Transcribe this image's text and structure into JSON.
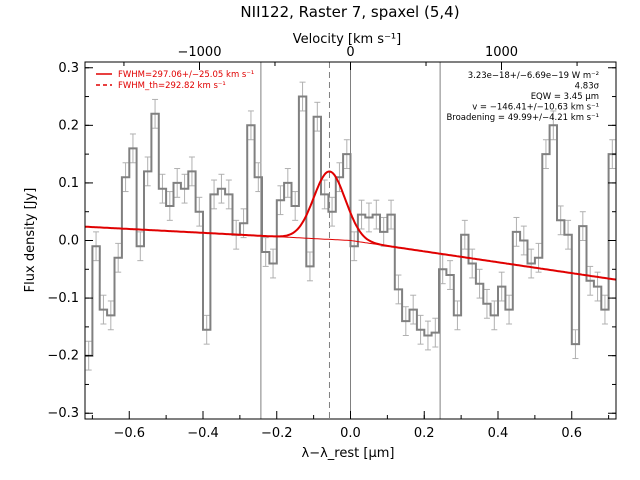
{
  "chart_data": {
    "type": "line",
    "title": "NII122, Raster 7, spaxel (5,4)",
    "xlabel": "λ−λ_rest [μm]",
    "ylabel": "Flux density [Jy]",
    "top_axis_label": "Velocity [km s⁻¹]",
    "xlim": [
      -0.72,
      0.72
    ],
    "ylim": [
      -0.31,
      0.31
    ],
    "top_axis_ticks": [
      {
        "label": "−1000",
        "value": -0.4095
      },
      {
        "label": "0",
        "value": 0.0
      },
      {
        "label": "1000",
        "value": 0.4095
      }
    ],
    "x_ticks": [
      {
        "label": "−0.6",
        "value": -0.6
      },
      {
        "label": "−0.4",
        "value": -0.4
      },
      {
        "label": "−0.2",
        "value": -0.2
      },
      {
        "label": "0.0",
        "value": 0.0
      },
      {
        "label": "0.2",
        "value": 0.2
      },
      {
        "label": "0.4",
        "value": 0.4
      },
      {
        "label": "0.6",
        "value": 0.6
      }
    ],
    "y_ticks": [
      {
        "label": "−0.3",
        "value": -0.3
      },
      {
        "label": "−0.2",
        "value": -0.2
      },
      {
        "label": "−0.1",
        "value": -0.1
      },
      {
        "label": "0.0",
        "value": 0.0
      },
      {
        "label": "0.1",
        "value": 0.1
      },
      {
        "label": "0.2",
        "value": 0.2
      },
      {
        "label": "0.3",
        "value": 0.3
      }
    ],
    "vertical_lines": [
      -0.243,
      0.0,
      0.243
    ],
    "dashed_vertical_line": -0.057,
    "series": [
      {
        "name": "spectrum",
        "color": "#808080",
        "x": [
          -0.71,
          -0.69,
          -0.67,
          -0.65,
          -0.63,
          -0.61,
          -0.59,
          -0.57,
          -0.55,
          -0.53,
          -0.51,
          -0.49,
          -0.47,
          -0.45,
          -0.43,
          -0.41,
          -0.39,
          -0.37,
          -0.35,
          -0.33,
          -0.31,
          -0.29,
          -0.27,
          -0.25,
          -0.23,
          -0.21,
          -0.19,
          -0.17,
          -0.15,
          -0.13,
          -0.11,
          -0.09,
          -0.07,
          -0.05,
          -0.03,
          -0.01,
          0.01,
          0.03,
          0.05,
          0.07,
          0.09,
          0.11,
          0.13,
          0.15,
          0.17,
          0.19,
          0.21,
          0.23,
          0.25,
          0.27,
          0.29,
          0.31,
          0.33,
          0.35,
          0.37,
          0.39,
          0.41,
          0.43,
          0.45,
          0.47,
          0.49,
          0.51,
          0.53,
          0.55,
          0.57,
          0.59,
          0.61,
          0.63,
          0.65,
          0.67,
          0.69,
          0.71
        ],
        "y": [
          -0.2,
          -0.01,
          -0.12,
          -0.13,
          -0.03,
          0.11,
          0.16,
          -0.01,
          0.12,
          0.22,
          0.09,
          0.06,
          0.1,
          0.09,
          0.12,
          0.05,
          -0.155,
          0.08,
          0.09,
          0.08,
          0.01,
          0.03,
          0.2,
          0.11,
          -0.02,
          -0.04,
          0.07,
          0.1,
          0.06,
          0.25,
          -0.045,
          0.215,
          0.08,
          0.05,
          0.11,
          0.15,
          -0.01,
          0.045,
          0.04,
          0.045,
          0.015,
          0.045,
          -0.085,
          -0.14,
          -0.12,
          -0.155,
          -0.165,
          -0.16,
          -0.05,
          -0.06,
          -0.13,
          0.01,
          -0.04,
          -0.075,
          -0.11,
          -0.13,
          -0.08,
          -0.12,
          0.015,
          0.0,
          -0.04,
          -0.03,
          0.15,
          0.2,
          0.035,
          0.01,
          -0.18,
          0.025,
          -0.07,
          -0.08,
          -0.12,
          0.15
        ],
        "error": 0.025
      },
      {
        "name": "continuum",
        "color": "#e00000",
        "x": [
          -0.72,
          0.0,
          0.72
        ],
        "y": [
          0.024,
          0.0,
          -0.068
        ]
      },
      {
        "name": "line fit (Gaussian)",
        "color": "#e00000",
        "center": -0.057,
        "amplitude": 0.118,
        "sigma": 0.0425
      }
    ],
    "legend": {
      "position": "top-left",
      "items": [
        {
          "label": "FWHM=297.06+/−25.05 km s⁻¹",
          "style": "solid",
          "color": "#e00000"
        },
        {
          "label": "FWHM_th=292.82 km s⁻¹",
          "style": "dashed",
          "color": "#e00000"
        }
      ]
    },
    "annotations": {
      "position": "top-right",
      "lines": [
        "3.23e−18+/−6.69e−19 W m⁻²",
        "4.83σ",
        "EQW = 3.45 μm",
        "v = −146.41+/−10.63 km s⁻¹",
        "Broadening = 49.99+/−4.21 km s⁻¹"
      ]
    }
  }
}
